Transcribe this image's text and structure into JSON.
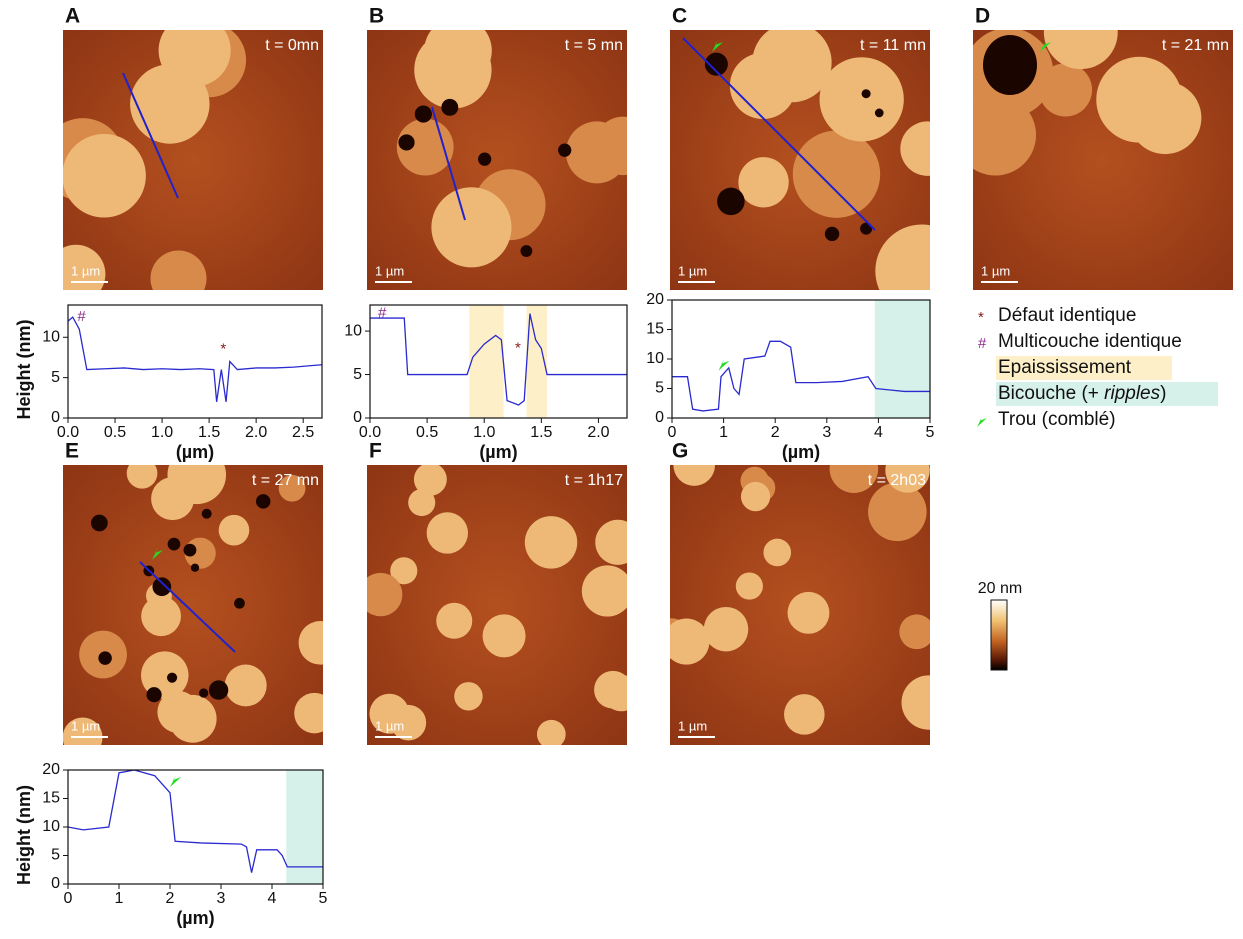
{
  "panels": [
    {
      "letter": "A",
      "time": "t = 0mn",
      "scale": "1 µm"
    },
    {
      "letter": "B",
      "time": "t = 5 mn",
      "scale": "1 µm"
    },
    {
      "letter": "C",
      "time": "t = 11 mn",
      "scale": "1 µm"
    },
    {
      "letter": "D",
      "time": "t = 21 mn",
      "scale": "1 µm"
    },
    {
      "letter": "E",
      "time": "t = 27 mn",
      "scale": "1 µm"
    },
    {
      "letter": "F",
      "time": "t = 1h17",
      "scale": "1 µm"
    },
    {
      "letter": "G",
      "time": "t = 2h03",
      "scale": "1 µm"
    }
  ],
  "chart_data": [
    {
      "type": "line",
      "ylabel": "Height (nm)",
      "xlabel": "(µm)",
      "x": [
        0,
        0.05,
        0.12,
        0.2,
        0.4,
        0.6,
        0.8,
        1.0,
        1.2,
        1.4,
        1.55,
        1.58,
        1.63,
        1.68,
        1.72,
        1.8,
        2.0,
        2.2,
        2.4,
        2.6,
        2.7
      ],
      "series": [
        {
          "color": "#2a2ad0",
          "values": [
            12,
            12.5,
            11,
            6,
            6.1,
            6.2,
            6.0,
            6.1,
            6.0,
            6.1,
            6.0,
            2,
            6,
            2,
            7,
            6,
            6.2,
            6.2,
            6.3,
            6.5,
            6.6
          ]
        }
      ],
      "xlim": [
        0,
        2.7
      ],
      "ylim": [
        0,
        14
      ],
      "xticks": [
        {
          "value": 0,
          "label": "0.0"
        },
        0.5,
        {
          "value": 1,
          "label": "1.0"
        },
        1.5,
        {
          "value": 2,
          "label": "2.0"
        },
        2.5
      ],
      "yticks": [
        0,
        5,
        10
      ],
      "annotations": [
        {
          "text": "#",
          "x": 0.1,
          "y": 12.5,
          "color": "#8a2b8a"
        },
        {
          "text": "*",
          "x": 1.62,
          "y": 8.5,
          "color": "#8b1a1a"
        }
      ]
    },
    {
      "type": "line",
      "xlabel": "(µm)",
      "x": [
        0,
        0.3,
        0.33,
        0.6,
        0.85,
        0.9,
        1.0,
        1.1,
        1.15,
        1.2,
        1.3,
        1.35,
        1.4,
        1.45,
        1.5,
        1.55,
        1.8,
        2.0,
        2.25
      ],
      "series": [
        {
          "color": "#2a2ad0",
          "values": [
            11.5,
            11.5,
            5,
            5,
            5,
            7,
            8.5,
            9.5,
            9,
            2,
            1.5,
            2,
            12,
            9,
            8,
            5,
            5,
            5,
            5
          ]
        }
      ],
      "xlim": [
        0,
        2.25
      ],
      "ylim": [
        0,
        13
      ],
      "xticks": [
        {
          "value": 0,
          "label": "0.0"
        },
        0.5,
        {
          "value": 1,
          "label": "1.0"
        },
        1.5,
        {
          "value": 2,
          "label": "2.0"
        }
      ],
      "yticks": [
        0,
        5,
        10
      ],
      "spans": [
        {
          "x": [
            0.87,
            1.17
          ],
          "color": "#fdf0c8"
        },
        {
          "x": [
            1.37,
            1.55
          ],
          "color": "#fdf0c8"
        }
      ],
      "annotations": [
        {
          "text": "#",
          "x": 0.07,
          "y": 12,
          "color": "#8a2b8a"
        },
        {
          "text": "*",
          "x": 1.27,
          "y": 8,
          "color": "#8b1a1a"
        }
      ]
    },
    {
      "type": "line",
      "xlabel": "(µm)",
      "x": [
        0,
        0.3,
        0.4,
        0.6,
        0.9,
        0.95,
        1.1,
        1.2,
        1.3,
        1.4,
        1.8,
        1.9,
        2.1,
        2.3,
        2.4,
        2.8,
        3.3,
        3.8,
        3.95,
        4.5,
        5
      ],
      "series": [
        {
          "color": "#2a2ad0",
          "values": [
            7,
            7,
            1.5,
            1.2,
            1.5,
            7,
            8.5,
            5,
            4,
            10,
            10.5,
            13,
            13,
            12,
            6,
            6,
            6.2,
            7,
            5,
            4.5,
            4.5
          ]
        }
      ],
      "xlim": [
        0,
        5
      ],
      "ylim": [
        0,
        20
      ],
      "xticks": [
        0,
        1,
        2,
        3,
        4,
        5
      ],
      "yticks": [
        0,
        5,
        10,
        15,
        20
      ],
      "spans": [
        {
          "x": [
            3.93,
            5
          ],
          "color": "#d6f0ea"
        }
      ],
      "arrows": [
        {
          "x": 0.9,
          "y": 8
        }
      ]
    },
    {
      "type": "line",
      "ylabel": "Height (nm)",
      "xlabel": "(µm)",
      "x": [
        0,
        0.3,
        0.8,
        1.0,
        1.3,
        1.7,
        1.9,
        2.0,
        2.1,
        2.6,
        3.4,
        3.5,
        3.6,
        3.7,
        4.1,
        4.2,
        4.3,
        4.7,
        5
      ],
      "series": [
        {
          "color": "#2a2ad0",
          "values": [
            10,
            9.5,
            10,
            19.5,
            20,
            19,
            17,
            16,
            7.5,
            7.2,
            7,
            6.5,
            2,
            6,
            6,
            5,
            3,
            3,
            3
          ]
        }
      ],
      "xlim": [
        0,
        5
      ],
      "ylim": [
        0,
        20
      ],
      "xticks": [
        0,
        1,
        2,
        3,
        4,
        5
      ],
      "yticks": [
        0,
        5,
        10,
        15,
        20
      ],
      "spans": [
        {
          "x": [
            4.28,
            5
          ],
          "color": "#d6f0ea"
        }
      ],
      "arrows": [
        {
          "x": 2.0,
          "y": 17
        }
      ]
    }
  ],
  "legend": [
    {
      "symbol": "*",
      "text": "Défaut identique"
    },
    {
      "symbol": "#",
      "text": "Multicouche identique"
    },
    {
      "text": "Epaississement"
    },
    {
      "text": "Bicouche (+ ",
      "italic": "ripples",
      "end": ")"
    },
    {
      "text": "Trou (comblé)"
    }
  ],
  "colorbar": {
    "label": "20 nm"
  }
}
